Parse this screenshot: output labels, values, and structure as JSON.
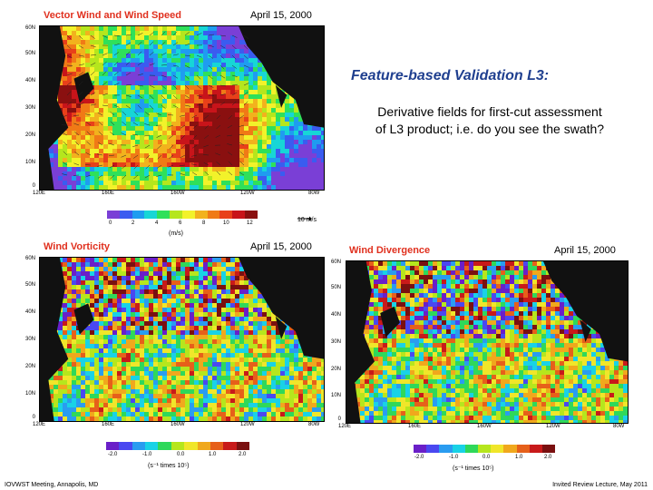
{
  "slide": {
    "heading": "Feature-based Validation L3:",
    "subtext_line1": "Derivative fields for first-cut assessment",
    "subtext_line2": "of L3 product; i.e. do you see the swath?",
    "footer_left": "IOVWST Meeting, Annapolis, MD",
    "footer_right": "Invited Review Lecture, May 2011"
  },
  "panels": {
    "wind": {
      "title": "Vector Wind and Wind Speed",
      "date": "April 15, 2000",
      "lat_labels": [
        "60N",
        "50N",
        "40N",
        "30N",
        "20N",
        "10N",
        "0"
      ],
      "lon_labels": [
        "120E",
        "160E",
        "160W",
        "120W",
        "80W"
      ],
      "colorbar_ticks": [
        "0",
        "2",
        "4",
        "6",
        "8",
        "10",
        "12"
      ],
      "colorbar_unit": "(m/s)",
      "vector_scale": "10 m/s"
    },
    "vorticity": {
      "title": "Wind Vorticity",
      "date": "April 15, 2000",
      "lat_labels": [
        "60N",
        "50N",
        "40N",
        "30N",
        "20N",
        "10N",
        "0"
      ],
      "lon_labels": [
        "120E",
        "160E",
        "160W",
        "120W",
        "80W"
      ],
      "colorbar_ticks": [
        "-2.0",
        "-1.0",
        "0.0",
        "1.0",
        "2.0"
      ],
      "colorbar_unit": "(s⁻¹ times 10⁵)"
    },
    "divergence": {
      "title": "Wind Divergence",
      "date": "April 15, 2000",
      "lat_labels": [
        "60N",
        "50N",
        "40N",
        "30N",
        "20N",
        "10N",
        "0"
      ],
      "lon_labels": [
        "120E",
        "160E",
        "160W",
        "120W",
        "80W"
      ],
      "colorbar_ticks": [
        "-2.0",
        "-1.0",
        "0.0",
        "1.0",
        "2.0"
      ],
      "colorbar_unit": "(s⁻¹ times 10⁵)"
    }
  },
  "colors": {
    "heading": "#1f3f8f",
    "panel_title": "#e0301e",
    "land": "#111111",
    "speed_scale": [
      "#7a3fd6",
      "#3a5cf0",
      "#1f9cf0",
      "#17d6d6",
      "#2fe05a",
      "#b5e61d",
      "#f2f22a",
      "#f2b21d",
      "#f07a16",
      "#e8401a",
      "#c8141a",
      "#8a1010"
    ],
    "vort_scale": [
      "#6a1fc8",
      "#4a48f0",
      "#2a9cf0",
      "#19d2e6",
      "#2fd85a",
      "#b6e61d",
      "#f0e62a",
      "#f0a81d",
      "#e6601a",
      "#c81a1a",
      "#7a1010"
    ]
  }
}
